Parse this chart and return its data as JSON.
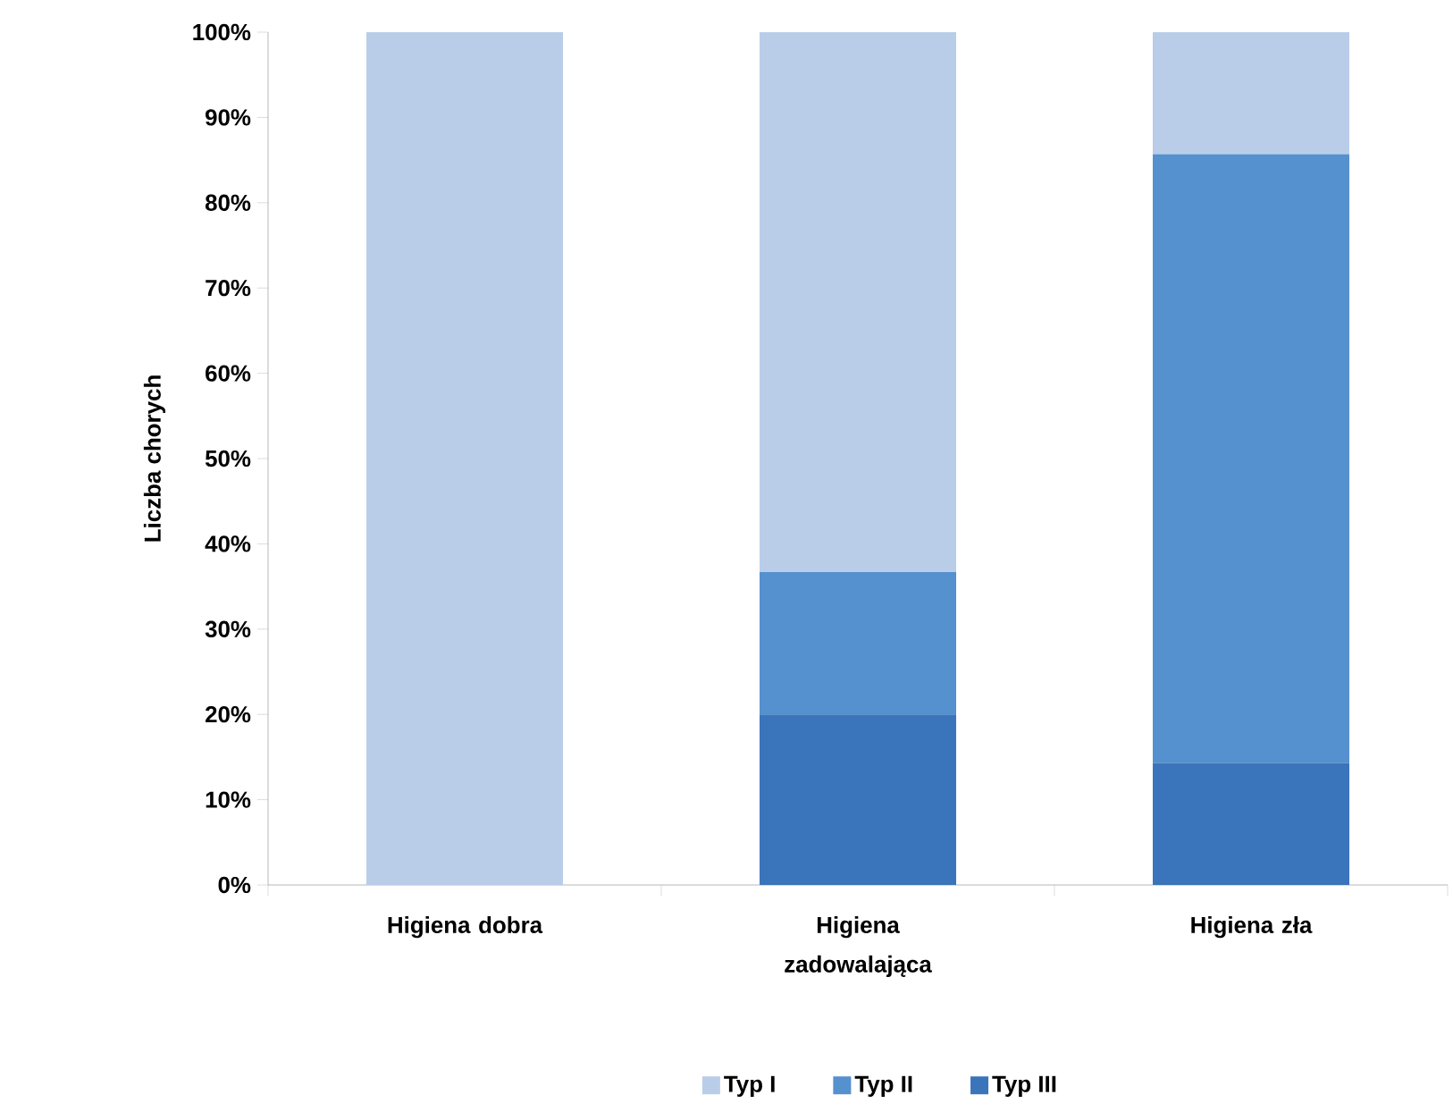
{
  "chart_data": {
    "type": "bar",
    "stacked": true,
    "ylabel": "Liczba chorych",
    "categories": [
      "Higiena dobra",
      "Higiena zadowalająca",
      "Higiena zła"
    ],
    "series": [
      {
        "name": "Typ III",
        "color": "#3a74bb",
        "values": [
          0,
          20,
          14.3
        ]
      },
      {
        "name": "Typ II",
        "color": "#5590cf",
        "values": [
          0,
          16.7,
          71.4
        ]
      },
      {
        "name": "Typ I",
        "color": "#b9cde9",
        "values": [
          100,
          63.3,
          14.3
        ]
      }
    ],
    "ylim": [
      0,
      100
    ],
    "yticks": [
      {
        "value": 0,
        "label": "0%"
      },
      {
        "value": 10,
        "label": "10%"
      },
      {
        "value": 20,
        "label": "20%"
      },
      {
        "value": 30,
        "label": "30%"
      },
      {
        "value": 40,
        "label": "40%"
      },
      {
        "value": 50,
        "label": "50%"
      },
      {
        "value": 60,
        "label": "60%"
      },
      {
        "value": 70,
        "label": "70%"
      },
      {
        "value": 80,
        "label": "80%"
      },
      {
        "value": 90,
        "label": "90%"
      },
      {
        "value": 100,
        "label": "100%"
      }
    ],
    "legend": "bottom",
    "grid": false
  }
}
